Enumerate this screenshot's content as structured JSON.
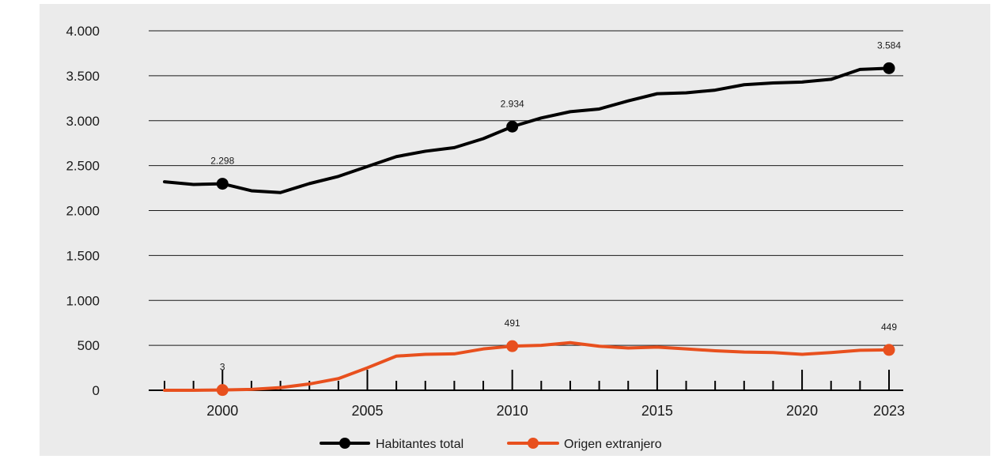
{
  "chart_data": {
    "type": "line",
    "x": [
      1998,
      1999,
      2000,
      2001,
      2002,
      2003,
      2004,
      2005,
      2006,
      2007,
      2008,
      2009,
      2010,
      2011,
      2012,
      2013,
      2014,
      2015,
      2016,
      2017,
      2018,
      2019,
      2020,
      2021,
      2022,
      2023
    ],
    "series": [
      {
        "name": "Habitantes total",
        "color": "#000000",
        "values": [
          2320,
          2290,
          2298,
          2220,
          2200,
          2300,
          2380,
          2490,
          2600,
          2660,
          2700,
          2800,
          2934,
          3030,
          3100,
          3130,
          3220,
          3300,
          3310,
          3340,
          3400,
          3420,
          3430,
          3460,
          3570,
          3584
        ]
      },
      {
        "name": "Origen extranjero",
        "color": "#e8501e",
        "values": [
          0,
          0,
          3,
          10,
          30,
          70,
          130,
          250,
          380,
          400,
          405,
          460,
          491,
          500,
          530,
          490,
          470,
          480,
          460,
          440,
          425,
          420,
          400,
          420,
          445,
          449
        ]
      }
    ],
    "highlighted_points": [
      {
        "series": 0,
        "x": 2000,
        "label": "2.298"
      },
      {
        "series": 0,
        "x": 2010,
        "label": "2.934"
      },
      {
        "series": 0,
        "x": 2023,
        "label": "3.584"
      },
      {
        "series": 1,
        "x": 2000,
        "label": "3"
      },
      {
        "series": 1,
        "x": 2010,
        "label": "491"
      },
      {
        "series": 1,
        "x": 2023,
        "label": "449"
      }
    ],
    "y_ticks": [
      0,
      500,
      1000,
      1500,
      2000,
      2500,
      3000,
      3500,
      4000
    ],
    "y_tick_labels": [
      "0",
      "500",
      "1.000",
      "1.500",
      "2.000",
      "2.500",
      "3.000",
      "3.500",
      "4.000"
    ],
    "x_ticks": [
      2000,
      2005,
      2010,
      2015,
      2020,
      2023
    ],
    "x_tick_labels": [
      "2000",
      "2005",
      "2010",
      "2015",
      "2020",
      "2023"
    ],
    "ylim": [
      0,
      4000
    ],
    "xlim": [
      1998,
      2023
    ],
    "grid": "horizontal",
    "legend_position": "bottom-center",
    "title": "",
    "xlabel": "",
    "ylabel": ""
  }
}
